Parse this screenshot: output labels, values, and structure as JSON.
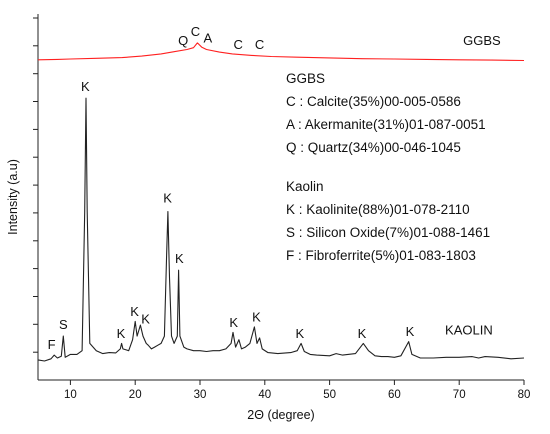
{
  "chart_data": {
    "type": "line",
    "xlabel": "2Θ (degree)",
    "ylabel": "Intensity (a.u)",
    "xlim": [
      5,
      80
    ],
    "ylim": [
      0,
      1
    ],
    "xticks": [
      10,
      20,
      30,
      40,
      50,
      60,
      70,
      80
    ],
    "yticks_unlabeled": true,
    "grid": false,
    "series": [
      {
        "name": "GGBS",
        "color": "#ff2020",
        "points": [
          [
            5,
            0.875
          ],
          [
            8,
            0.876
          ],
          [
            10,
            0.877
          ],
          [
            14,
            0.879
          ],
          [
            18,
            0.881
          ],
          [
            21,
            0.885
          ],
          [
            24,
            0.891
          ],
          [
            26,
            0.897
          ],
          [
            28,
            0.903
          ],
          [
            29,
            0.908
          ],
          [
            29.6,
            0.921
          ],
          [
            30.3,
            0.909
          ],
          [
            31,
            0.903
          ],
          [
            33,
            0.896
          ],
          [
            35,
            0.891
          ],
          [
            38,
            0.887
          ],
          [
            41,
            0.884
          ],
          [
            45,
            0.882
          ],
          [
            50,
            0.88
          ],
          [
            55,
            0.878
          ],
          [
            60,
            0.877
          ],
          [
            65,
            0.876
          ],
          [
            70,
            0.875
          ],
          [
            75,
            0.874
          ],
          [
            80,
            0.873
          ]
        ]
      },
      {
        "name": "KAOLIN",
        "color": "#222222",
        "points": [
          [
            5,
            0.055
          ],
          [
            6,
            0.052
          ],
          [
            7,
            0.058
          ],
          [
            7.5,
            0.068
          ],
          [
            8,
            0.06
          ],
          [
            8.6,
            0.065
          ],
          [
            8.9,
            0.12
          ],
          [
            9.2,
            0.062
          ],
          [
            10,
            0.07
          ],
          [
            11,
            0.07
          ],
          [
            11.8,
            0.08
          ],
          [
            12.2,
            0.46
          ],
          [
            12.4,
            0.77
          ],
          [
            12.6,
            0.46
          ],
          [
            13,
            0.1
          ],
          [
            14,
            0.08
          ],
          [
            15,
            0.072
          ],
          [
            16,
            0.075
          ],
          [
            17,
            0.074
          ],
          [
            17.7,
            0.085
          ],
          [
            17.9,
            0.1
          ],
          [
            18.1,
            0.085
          ],
          [
            19,
            0.08
          ],
          [
            19.6,
            0.11
          ],
          [
            20,
            0.16
          ],
          [
            20.3,
            0.12
          ],
          [
            20.8,
            0.15
          ],
          [
            21.2,
            0.12
          ],
          [
            21.7,
            0.1
          ],
          [
            22,
            0.095
          ],
          [
            22.5,
            0.085
          ],
          [
            23,
            0.09
          ],
          [
            23.5,
            0.095
          ],
          [
            24,
            0.1
          ],
          [
            24.5,
            0.12
          ],
          [
            24.85,
            0.34
          ],
          [
            25.05,
            0.46
          ],
          [
            25.3,
            0.28
          ],
          [
            25.6,
            0.12
          ],
          [
            26,
            0.1
          ],
          [
            26.5,
            0.12
          ],
          [
            26.7,
            0.3
          ],
          [
            26.9,
            0.12
          ],
          [
            27.5,
            0.09
          ],
          [
            28,
            0.085
          ],
          [
            29,
            0.08
          ],
          [
            30,
            0.08
          ],
          [
            31,
            0.078
          ],
          [
            32,
            0.08
          ],
          [
            33,
            0.08
          ],
          [
            34,
            0.085
          ],
          [
            34.8,
            0.1
          ],
          [
            35.1,
            0.13
          ],
          [
            35.5,
            0.09
          ],
          [
            36,
            0.11
          ],
          [
            36.4,
            0.085
          ],
          [
            37,
            0.09
          ],
          [
            37.7,
            0.1
          ],
          [
            38.4,
            0.145
          ],
          [
            38.8,
            0.1
          ],
          [
            39.2,
            0.115
          ],
          [
            39.6,
            0.085
          ],
          [
            40.5,
            0.075
          ],
          [
            42,
            0.072
          ],
          [
            44,
            0.075
          ],
          [
            45,
            0.08
          ],
          [
            45.6,
            0.1
          ],
          [
            46.1,
            0.078
          ],
          [
            47,
            0.07
          ],
          [
            48,
            0.068
          ],
          [
            50,
            0.066
          ],
          [
            51,
            0.072
          ],
          [
            52,
            0.068
          ],
          [
            54,
            0.072
          ],
          [
            55.2,
            0.1
          ],
          [
            56,
            0.08
          ],
          [
            57,
            0.066
          ],
          [
            58,
            0.064
          ],
          [
            59,
            0.064
          ],
          [
            60,
            0.062
          ],
          [
            61,
            0.066
          ],
          [
            62.2,
            0.105
          ],
          [
            62.7,
            0.07
          ],
          [
            64,
            0.06
          ],
          [
            66,
            0.06
          ],
          [
            68,
            0.062
          ],
          [
            70,
            0.062
          ],
          [
            72,
            0.064
          ],
          [
            73,
            0.06
          ],
          [
            74,
            0.064
          ],
          [
            76,
            0.062
          ],
          [
            78,
            0.058
          ],
          [
            80,
            0.06
          ]
        ]
      }
    ],
    "series_labels": [
      {
        "text": "GGBS",
        "x": 73.5,
        "y": 0.915
      },
      {
        "text": "KAOLIN",
        "x": 71.5,
        "y": 0.125
      }
    ],
    "peak_labels": [
      {
        "text": "Q",
        "x": 27.4,
        "y": 0.915
      },
      {
        "text": "C",
        "x": 29.3,
        "y": 0.94
      },
      {
        "text": "A",
        "x": 31.2,
        "y": 0.922
      },
      {
        "text": "C",
        "x": 35.9,
        "y": 0.905
      },
      {
        "text": "C",
        "x": 39.2,
        "y": 0.905
      },
      {
        "text": "K",
        "x": 12.3,
        "y": 0.79
      },
      {
        "text": "K",
        "x": 17.8,
        "y": 0.115
      },
      {
        "text": "K",
        "x": 19.9,
        "y": 0.175
      },
      {
        "text": "K",
        "x": 21.6,
        "y": 0.155
      },
      {
        "text": "K",
        "x": 25.0,
        "y": 0.485
      },
      {
        "text": "K",
        "x": 26.8,
        "y": 0.32
      },
      {
        "text": "K",
        "x": 35.2,
        "y": 0.145
      },
      {
        "text": "K",
        "x": 38.7,
        "y": 0.16
      },
      {
        "text": "K",
        "x": 45.4,
        "y": 0.115
      },
      {
        "text": "K",
        "x": 55.0,
        "y": 0.115
      },
      {
        "text": "K",
        "x": 62.4,
        "y": 0.12
      },
      {
        "text": "S",
        "x": 8.9,
        "y": 0.14
      },
      {
        "text": "F",
        "x": 7.1,
        "y": 0.085
      }
    ],
    "legend": {
      "ggbs": {
        "title": "GGBS",
        "entries": [
          "C : Calcite(35%)00-005-0586",
          "A : Akermanite(31%)01-087-0051",
          "Q : Quartz(34%)00-046-1045"
        ]
      },
      "kaolin": {
        "title": "Kaolin",
        "entries": [
          "K : Kaolinite(88%)01-078-2110",
          "S : Silicon Oxide(7%)01-088-1461",
          "F : Fibroferrite(5%)01-083-1803"
        ]
      }
    }
  }
}
